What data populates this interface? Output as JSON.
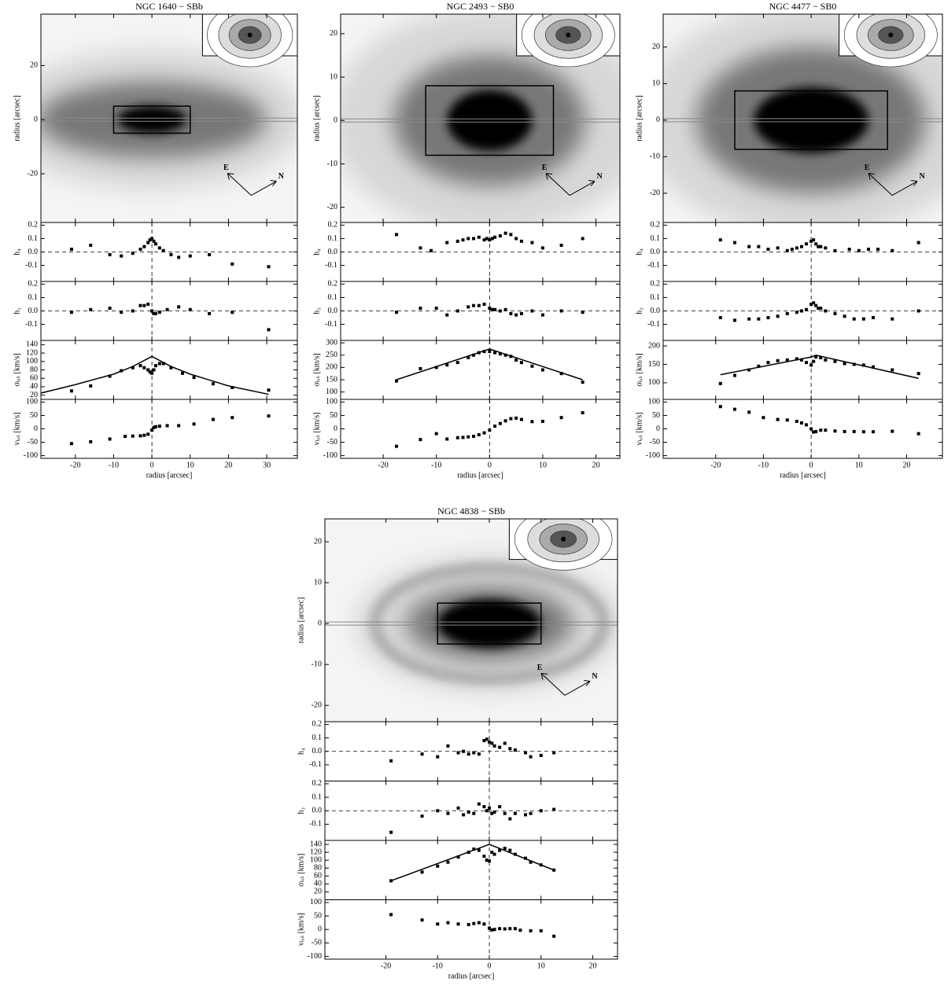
{
  "chart_data": [
    {
      "type": "kinematics",
      "title": "NGC 1640 − SBb",
      "xlabel": "radius [arcsec]",
      "xlim": [
        -29,
        38
      ],
      "xticks": [
        -20,
        -10,
        0,
        10,
        20,
        30
      ],
      "image": {
        "ylabel": "radius [arcsec]",
        "ylim": [
          -38,
          39
        ],
        "yticks": [
          -20,
          0,
          20
        ],
        "compass": [
          "E",
          "N"
        ]
      },
      "panels": [
        {
          "ylabel": "h₄",
          "ylim": [
            -0.22,
            0.22
          ],
          "yticks": [
            -0.1,
            {
              "value": 0,
              "label": "0.0"
            },
            0.1,
            0.2
          ],
          "zero_line": true,
          "x": [
            -21,
            -16,
            -11,
            -8,
            -5,
            -3,
            -2,
            -1,
            -0.5,
            0,
            0.5,
            1,
            2,
            3,
            5,
            7,
            10,
            15,
            21,
            30.5
          ],
          "values": [
            0.02,
            0.05,
            -0.02,
            -0.03,
            -0.01,
            0.02,
            0.04,
            0.07,
            0.09,
            0.1,
            0.08,
            0.06,
            0.03,
            0.01,
            -0.02,
            -0.04,
            -0.03,
            -0.02,
            -0.09,
            -0.11
          ]
        },
        {
          "ylabel": "h₃",
          "ylim": [
            -0.22,
            0.22
          ],
          "yticks": [
            -0.1,
            {
              "value": 0,
              "label": "0.0"
            },
            0.1,
            0.2
          ],
          "zero_line": true,
          "x": [
            -21,
            -16,
            -11,
            -8,
            -5,
            -3,
            -2,
            -1,
            0,
            0.5,
            1,
            2,
            4,
            7,
            10,
            15,
            21,
            30.5
          ],
          "values": [
            -0.01,
            0.01,
            0.02,
            -0.01,
            0,
            0.04,
            0.04,
            0.05,
            0,
            -0.02,
            -0.02,
            -0.01,
            0.01,
            0.03,
            0.01,
            -0.02,
            -0.01,
            -0.14
          ]
        },
        {
          "ylabel": "σₗₒₛ [km/s]",
          "ylim": [
            10,
            150
          ],
          "yticks": [
            20,
            40,
            60,
            80,
            100,
            120,
            140
          ],
          "x": [
            -21,
            -16,
            -11,
            -8,
            -5,
            -3,
            -2,
            -1,
            -0.5,
            0,
            0.5,
            1,
            2,
            3,
            5,
            8,
            11,
            16,
            21,
            30.5
          ],
          "values": [
            30,
            42,
            65,
            78,
            85,
            90,
            85,
            80,
            75,
            72,
            80,
            90,
            95,
            95,
            85,
            72,
            62,
            47,
            38,
            32
          ],
          "fit_x": [
            -29,
            -20,
            -10,
            -5,
            0,
            5,
            10,
            20,
            30.5
          ],
          "fit": [
            25,
            45,
            70,
            88,
            112,
            88,
            70,
            42,
            22
          ]
        },
        {
          "ylabel": "vₗₒₛ [km/s]",
          "ylim": [
            -110,
            110
          ],
          "yticks": [
            -100,
            -50,
            0,
            50,
            100
          ],
          "x": [
            -21,
            -16,
            -11,
            -7,
            -5,
            -3,
            -2,
            -1,
            0,
            0.5,
            1,
            2,
            4,
            7,
            11,
            16,
            21,
            30.5
          ],
          "values": [
            -55,
            -48,
            -38,
            -28,
            -27,
            -26,
            -24,
            -20,
            -5,
            5,
            8,
            10,
            12,
            12,
            18,
            35,
            42,
            48
          ]
        }
      ]
    },
    {
      "type": "kinematics",
      "title": "NGC 2493 − SB0",
      "xlabel": "radius [arcsec]",
      "xlim": [
        -28,
        24.5
      ],
      "xticks": [
        -20,
        -10,
        0,
        10,
        20
      ],
      "image": {
        "ylabel": "radius [arcsec]",
        "ylim": [
          -23.5,
          24.5
        ],
        "yticks": [
          -20,
          -10,
          0,
          10,
          20
        ],
        "compass": [
          "E",
          "N"
        ]
      },
      "panels": [
        {
          "ylabel": "h₄",
          "ylim": [
            -0.22,
            0.22
          ],
          "yticks": [
            -0.1,
            {
              "value": 0,
              "label": "0.0"
            },
            0.1,
            0.2
          ],
          "zero_line": true,
          "x": [
            -17.5,
            -13,
            -11,
            -8,
            -6,
            -5,
            -4,
            -3,
            -2,
            -1,
            -0.5,
            0,
            0.5,
            1,
            2,
            3,
            4,
            5,
            6,
            8,
            10,
            13.5,
            17.5
          ],
          "values": [
            0.13,
            0.03,
            0.01,
            0.07,
            0.08,
            0.09,
            0.1,
            0.1,
            0.11,
            0.09,
            0.1,
            0.09,
            0.1,
            0.11,
            0.12,
            0.14,
            0.13,
            0.1,
            0.08,
            0.07,
            0.03,
            0.05,
            0.1
          ]
        },
        {
          "ylabel": "h₃",
          "ylim": [
            -0.22,
            0.22
          ],
          "yticks": [
            -0.1,
            {
              "value": 0,
              "label": "0.0"
            },
            0.1,
            0.2
          ],
          "zero_line": true,
          "x": [
            -17.5,
            -13,
            -10,
            -8,
            -6,
            -4,
            -3,
            -2,
            -1,
            0,
            0.5,
            1,
            2,
            3,
            4,
            5,
            6,
            8,
            10,
            13.5,
            17.5
          ],
          "values": [
            -0.01,
            0.02,
            0.02,
            -0.03,
            0,
            0.03,
            0.04,
            0.04,
            0.05,
            0.02,
            0.01,
            0.01,
            0,
            0.01,
            -0.02,
            -0.03,
            -0.02,
            0,
            -0.03,
            0,
            -0.01
          ]
        },
        {
          "ylabel": "σₗₒₛ [km/s]",
          "ylim": [
            70,
            310
          ],
          "yticks": [
            100,
            150,
            200,
            250,
            300
          ],
          "x": [
            -17.5,
            -13,
            -10,
            -8,
            -6,
            -4,
            -3,
            -2,
            -1,
            0,
            1,
            2,
            3,
            4,
            5,
            6,
            8,
            10,
            13.5,
            17.5
          ],
          "values": [
            145,
            195,
            200,
            210,
            220,
            240,
            250,
            260,
            265,
            265,
            260,
            255,
            250,
            245,
            230,
            220,
            205,
            190,
            175,
            140
          ],
          "fit_x": [
            -17.5,
            0,
            17.5
          ],
          "fit": [
            150,
            275,
            150
          ]
        },
        {
          "ylabel": "vₗₒₛ [km/s]",
          "ylim": [
            -110,
            110
          ],
          "yticks": [
            -100,
            -50,
            0,
            50,
            100
          ],
          "x": [
            -17.5,
            -13,
            -10,
            -8,
            -6,
            -5,
            -4,
            -3,
            -2,
            -1,
            0,
            1,
            2,
            3,
            4,
            5,
            6,
            8,
            10,
            13.5,
            17.5
          ],
          "values": [
            -65,
            -40,
            -18,
            -38,
            -33,
            -32,
            -30,
            -28,
            -22,
            -15,
            -5,
            10,
            20,
            30,
            38,
            40,
            35,
            27,
            28,
            42,
            60
          ]
        }
      ]
    },
    {
      "type": "kinematics",
      "title": "NGC 4477 − SB0",
      "xlabel": "radius [arcsec]",
      "xlim": [
        -31,
        27.5
      ],
      "xticks": [
        -20,
        -10,
        0,
        10,
        20
      ],
      "image": {
        "ylabel": "radius [arcsec]",
        "ylim": [
          -28,
          29
        ],
        "yticks": [
          -20,
          -10,
          0,
          10,
          20
        ],
        "compass": [
          "E",
          "N"
        ]
      },
      "panels": [
        {
          "ylabel": "h₄",
          "ylim": [
            -0.22,
            0.22
          ],
          "yticks": [
            -0.1,
            {
              "value": 0,
              "label": "0.0"
            },
            0.1,
            0.2
          ],
          "zero_line": true,
          "x": [
            -19,
            -16,
            -13,
            -11,
            -9,
            -7,
            -5,
            -4,
            -3,
            -2,
            -1,
            0,
            0.5,
            1,
            1.5,
            2,
            3,
            5,
            8,
            10,
            12,
            14,
            17,
            22.5
          ],
          "values": [
            0.09,
            0.07,
            0.04,
            0.04,
            0.02,
            0.03,
            0.01,
            0.02,
            0.03,
            0.04,
            0.06,
            0.08,
            0.09,
            0.06,
            0.04,
            0.04,
            0.03,
            0.01,
            0.02,
            0.01,
            0.02,
            0.02,
            0.01,
            0.07
          ]
        },
        {
          "ylabel": "h₃",
          "ylim": [
            -0.22,
            0.22
          ],
          "yticks": [
            -0.1,
            {
              "value": 0,
              "label": "0.0"
            },
            0.1,
            0.2
          ],
          "zero_line": true,
          "x": [
            -19,
            -16,
            -13,
            -11,
            -9,
            -7,
            -5,
            -3,
            -2,
            -1,
            0,
            0.5,
            1,
            1.5,
            2,
            3,
            5,
            7,
            9,
            11,
            13,
            17,
            22.5
          ],
          "values": [
            -0.05,
            -0.07,
            -0.06,
            -0.06,
            -0.05,
            -0.04,
            -0.02,
            -0.01,
            0,
            0.01,
            0.05,
            0.06,
            0.04,
            0.02,
            0.02,
            0,
            -0.02,
            -0.04,
            -0.06,
            -0.06,
            -0.05,
            -0.06,
            0
          ]
        },
        {
          "ylabel": "σₗₒₛ [km/s]",
          "ylim": [
            55,
            215
          ],
          "yticks": [
            100,
            150,
            200
          ],
          "x": [
            -19,
            -16,
            -13,
            -11,
            -9,
            -7,
            -5,
            -3,
            -2,
            -1,
            0,
            0.5,
            1,
            2,
            3,
            5,
            7,
            9,
            11,
            13,
            17,
            22.5
          ],
          "values": [
            98,
            120,
            135,
            145,
            155,
            160,
            162,
            165,
            162,
            155,
            148,
            158,
            170,
            168,
            162,
            158,
            152,
            150,
            148,
            143,
            135,
            125
          ],
          "fit_x": [
            -19,
            0,
            1,
            22.5
          ],
          "fit": [
            122,
            170,
            175,
            112
          ]
        },
        {
          "ylabel": "vₗₒₛ [km/s]",
          "ylim": [
            -110,
            110
          ],
          "yticks": [
            -100,
            -50,
            0,
            50,
            100
          ],
          "x": [
            -19,
            -16,
            -13,
            -10,
            -7,
            -5,
            -3,
            -2,
            -1,
            0,
            0.5,
            1,
            2,
            3,
            5,
            7,
            9,
            11,
            13,
            17,
            22.5
          ],
          "values": [
            83,
            73,
            62,
            42,
            35,
            33,
            28,
            22,
            15,
            0,
            -12,
            -10,
            -5,
            -5,
            -8,
            -10,
            -10,
            -11,
            -11,
            -9,
            -18
          ]
        }
      ]
    },
    {
      "type": "kinematics",
      "title": "NGC 4838 − SBb",
      "xlabel": "radius [arcsec]",
      "xlim": [
        -31.8,
        24.8
      ],
      "xticks": [
        -20,
        -10,
        0,
        10,
        20
      ],
      "image": {
        "ylabel": "radius [arcsec]",
        "ylim": [
          -24,
          25.6
        ],
        "yticks": [
          -20,
          -10,
          0,
          10,
          20
        ],
        "compass": [
          "E",
          "N"
        ]
      },
      "panels": [
        {
          "ylabel": "h₄",
          "ylim": [
            -0.22,
            0.22
          ],
          "yticks": [
            -0.1,
            {
              "value": 0,
              "label": "0.0"
            },
            0.1,
            0.2
          ],
          "zero_line": true,
          "x": [
            -19,
            -13,
            -10,
            -8,
            -6,
            -5,
            -4,
            -3,
            -2,
            -1,
            -0.5,
            0,
            0.5,
            1,
            2,
            3,
            4,
            5,
            7,
            8,
            10,
            12.5
          ],
          "values": [
            -0.07,
            -0.02,
            -0.04,
            0.04,
            -0.01,
            0,
            -0.02,
            -0.01,
            -0.02,
            0.08,
            0.09,
            0.07,
            0.06,
            0.04,
            0.03,
            0.06,
            0.02,
            0.01,
            -0.01,
            -0.04,
            -0.03,
            -0.01
          ]
        },
        {
          "ylabel": "h₃",
          "ylim": [
            -0.22,
            0.22
          ],
          "yticks": [
            -0.1,
            {
              "value": 0,
              "label": "0.0"
            },
            0.1,
            0.2
          ],
          "zero_line": true,
          "x": [
            -19,
            -13,
            -10,
            -8,
            -6,
            -5,
            -4,
            -3,
            -2,
            -1,
            -0.5,
            0,
            0.5,
            1,
            2,
            3,
            4,
            5,
            7,
            8,
            10,
            12.5
          ],
          "values": [
            -0.16,
            -0.04,
            0,
            -0.02,
            0.02,
            -0.03,
            -0.01,
            -0.02,
            0.05,
            0.03,
            0,
            0.02,
            -0.02,
            -0.01,
            0.03,
            -0.02,
            -0.06,
            -0.02,
            -0.03,
            -0.02,
            0,
            0.01
          ]
        },
        {
          "ylabel": "σₗₒₛ [km/s]",
          "ylim": [
            0,
            150
          ],
          "yticks": [
            20,
            40,
            60,
            80,
            100,
            120,
            140
          ],
          "x": [
            -19,
            -13,
            -10,
            -8,
            -6,
            -4,
            -3,
            -2,
            -1,
            -0.5,
            0,
            0.5,
            1,
            2,
            3,
            4,
            5,
            7,
            8,
            10,
            12.5
          ],
          "values": [
            48,
            70,
            85,
            95,
            108,
            120,
            128,
            125,
            110,
            100,
            98,
            120,
            115,
            125,
            130,
            125,
            115,
            105,
            95,
            88,
            75
          ],
          "fit_x": [
            -19,
            0,
            12.5
          ],
          "fit": [
            48,
            140,
            75
          ]
        },
        {
          "ylabel": "vₗₒₛ [km/s]",
          "ylim": [
            -110,
            110
          ],
          "yticks": [
            -100,
            -50,
            0,
            50,
            100
          ],
          "x": [
            -19,
            -13,
            -10,
            -8,
            -6,
            -4,
            -3,
            -2,
            -1,
            0,
            0.5,
            1,
            2,
            3,
            4,
            5,
            6,
            8,
            10,
            12.5
          ],
          "values": [
            55,
            35,
            20,
            25,
            20,
            18,
            22,
            25,
            20,
            5,
            -2,
            0,
            3,
            2,
            3,
            3,
            -3,
            -5,
            -5,
            -25
          ]
        }
      ]
    }
  ]
}
